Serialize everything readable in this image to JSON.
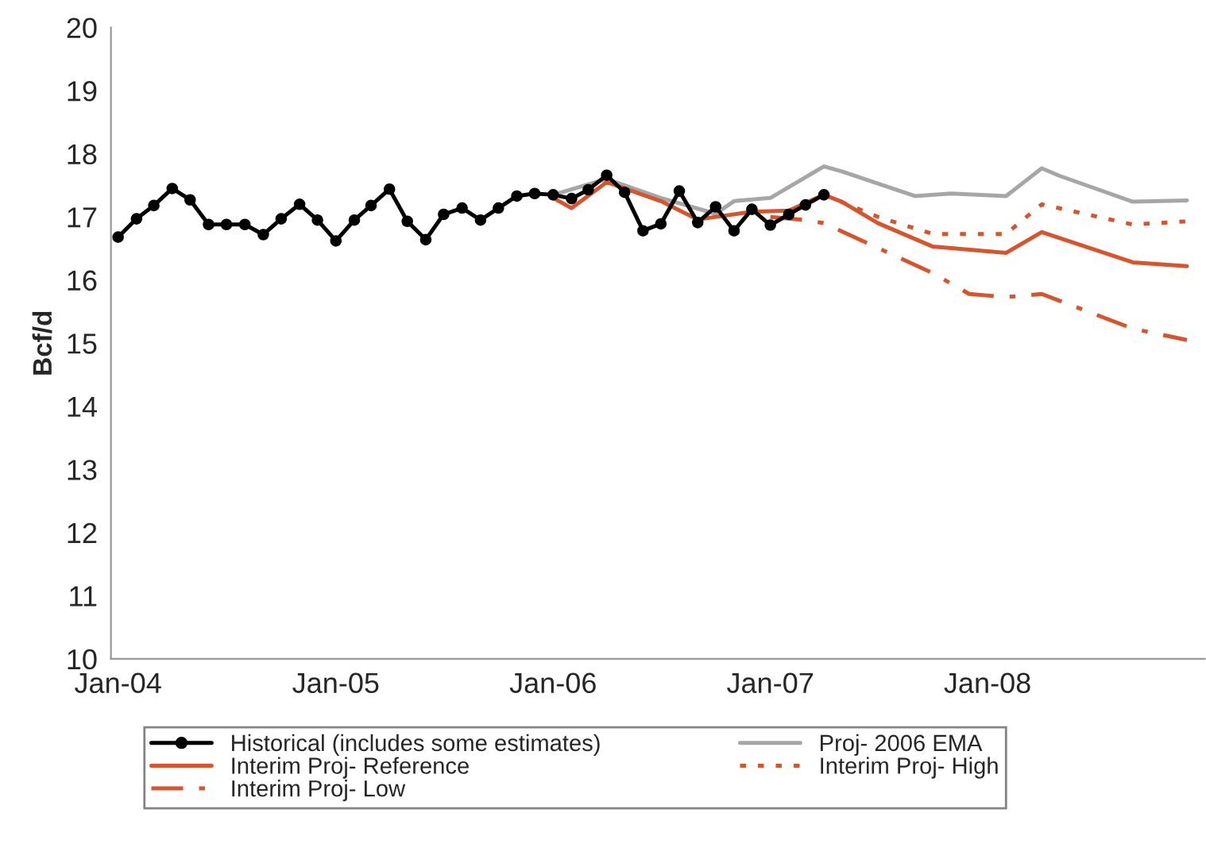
{
  "chart_data": {
    "type": "line",
    "ylabel": "Bcf/d",
    "ylim": [
      10,
      20
    ],
    "yticks": [
      10,
      11,
      12,
      13,
      14,
      15,
      16,
      17,
      18,
      19,
      20
    ],
    "xlim": [
      "2003-12-20",
      "2008-12-31"
    ],
    "xticks": [
      {
        "value": "2004-01",
        "label": "Jan-04"
      },
      {
        "value": "2005-01",
        "label": "Jan-05"
      },
      {
        "value": "2006-01",
        "label": "Jan-06"
      },
      {
        "value": "2007-01",
        "label": "Jan-07"
      },
      {
        "value": "2008-01",
        "label": "Jan-08"
      }
    ],
    "grid": false,
    "legend": "bottom",
    "series": [
      {
        "name": "Historical (includes some estimates)",
        "color": "#000000",
        "marker": "circle",
        "line_style": "solid",
        "x": [
          "2004-01",
          "2004-02",
          "2004-03",
          "2004-04",
          "2004-05",
          "2004-06",
          "2004-07",
          "2004-08",
          "2004-09",
          "2004-10",
          "2004-11",
          "2004-12",
          "2005-01",
          "2005-02",
          "2005-03",
          "2005-04",
          "2005-05",
          "2005-06",
          "2005-07",
          "2005-08",
          "2005-09",
          "2005-10",
          "2005-11",
          "2005-12",
          "2006-01",
          "2006-02",
          "2006-03",
          "2006-04",
          "2006-05",
          "2006-06",
          "2006-07",
          "2006-08",
          "2006-09",
          "2006-10",
          "2006-11",
          "2006-12",
          "2007-01",
          "2007-02",
          "2007-03",
          "2007-04"
        ],
        "values": [
          16.68,
          16.97,
          17.18,
          17.45,
          17.27,
          16.88,
          16.88,
          16.88,
          16.72,
          16.97,
          17.2,
          16.95,
          16.62,
          16.95,
          17.18,
          17.44,
          16.93,
          16.64,
          17.04,
          17.14,
          16.95,
          17.14,
          17.33,
          17.37,
          17.35,
          17.29,
          17.43,
          17.66,
          17.39,
          16.78,
          16.89,
          17.41,
          16.91,
          17.16,
          16.78,
          17.12,
          16.87,
          17.04,
          17.19,
          17.35
        ]
      },
      {
        "name": "Proj- 2006 EMA",
        "color": "#a6a6a6",
        "line_style": "solid",
        "x": [
          "2006-01",
          "2006-04",
          "2006-07",
          "2006-10",
          "2006-11",
          "2007-01",
          "2007-04",
          "2007-05",
          "2007-09",
          "2007-11",
          "2008-02",
          "2008-04",
          "2008-05",
          "2008-09",
          "2008-12"
        ],
        "values": [
          17.35,
          17.6,
          17.3,
          17.05,
          17.25,
          17.3,
          17.8,
          17.72,
          17.33,
          17.37,
          17.33,
          17.77,
          17.65,
          17.24,
          17.26
        ]
      },
      {
        "name": "Interim Proj- Reference",
        "color": "#d9532b",
        "line_style": "solid",
        "x": [
          "2006-01",
          "2006-02",
          "2006-04",
          "2006-07",
          "2006-09",
          "2006-12",
          "2007-02",
          "2007-04",
          "2007-05",
          "2007-07",
          "2007-10",
          "2008-02",
          "2008-04",
          "2008-09",
          "2008-12"
        ],
        "values": [
          17.3,
          17.14,
          17.55,
          17.25,
          16.96,
          17.08,
          17.1,
          17.35,
          17.24,
          16.9,
          16.53,
          16.43,
          16.76,
          16.28,
          16.22
        ]
      },
      {
        "name": "Interim Proj- High",
        "color": "#d9532b",
        "line_style": "dotted",
        "x": [
          "2007-04",
          "2007-07",
          "2007-10",
          "2008-02",
          "2008-04",
          "2008-09",
          "2008-12"
        ],
        "values": [
          17.35,
          17.0,
          16.73,
          16.73,
          17.2,
          16.88,
          16.93
        ]
      },
      {
        "name": "Interim Proj- Low",
        "color": "#d9532b",
        "line_style": "dashdot",
        "x": [
          "2007-01",
          "2007-03",
          "2007-04",
          "2007-10",
          "2007-12",
          "2008-02",
          "2008-04",
          "2008-09",
          "2008-12"
        ],
        "values": [
          17.0,
          16.95,
          16.9,
          16.11,
          15.78,
          15.73,
          15.78,
          15.23,
          15.05
        ]
      }
    ]
  }
}
